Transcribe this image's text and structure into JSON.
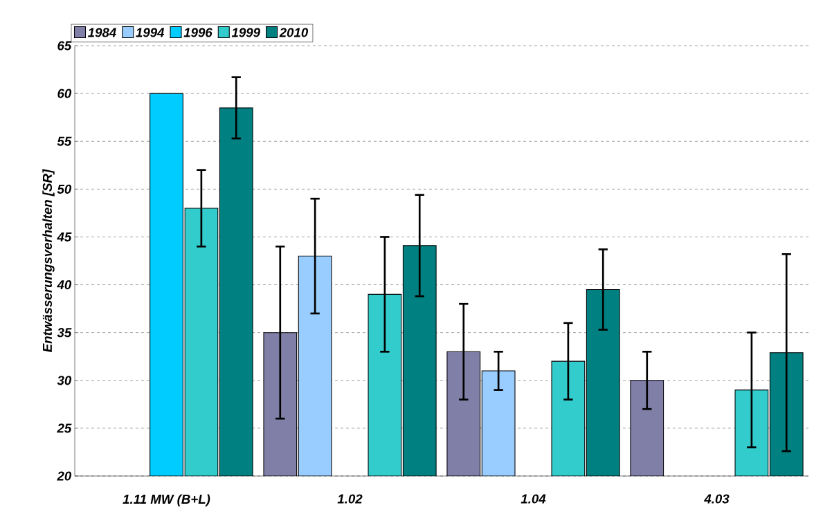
{
  "chart_data": {
    "type": "bar",
    "ylabel": "Entwässerungsverhalten [SR]",
    "categories": [
      "1.11 MW (B+L)",
      "1.02",
      "1.04",
      "4.03"
    ],
    "series": [
      {
        "name": "1984",
        "color": "#7f7fa8",
        "values": [
          null,
          35,
          33,
          30
        ],
        "errors": [
          null,
          9,
          5,
          3
        ]
      },
      {
        "name": "1994",
        "color": "#99ccff",
        "values": [
          null,
          43,
          31,
          null
        ],
        "errors": [
          null,
          6,
          2,
          null
        ]
      },
      {
        "name": "1996",
        "color": "#00ccff",
        "values": [
          60,
          null,
          null,
          null
        ],
        "errors": [
          null,
          null,
          null,
          null
        ]
      },
      {
        "name": "1999",
        "color": "#33cccc",
        "values": [
          48,
          39,
          32,
          29
        ],
        "errors": [
          4,
          6,
          4,
          6
        ]
      },
      {
        "name": "2010",
        "color": "#008080",
        "values": [
          58.5,
          44.1,
          39.5,
          32.9
        ],
        "errors": [
          3.2,
          5.3,
          4.2,
          10.3
        ]
      }
    ],
    "ylim": [
      20,
      65
    ],
    "yticks": [
      20,
      25,
      30,
      35,
      40,
      45,
      50,
      55,
      60,
      65
    ],
    "grid": "y",
    "legend": "top left"
  }
}
